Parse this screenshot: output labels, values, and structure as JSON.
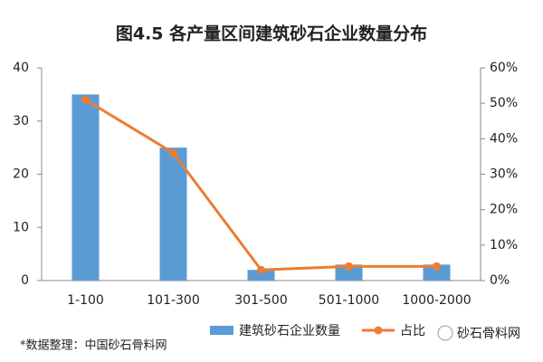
{
  "chart_data": {
    "type": "combo",
    "title": "图4.5 各产量区间建筑砂石企业数量分布",
    "categories": [
      "1-100",
      "101-300",
      "301-500",
      "501-1000",
      "1000-2000"
    ],
    "series": [
      {
        "name": "建筑砂石企业数量",
        "type": "bar",
        "color": "#5b9bd5",
        "values": [
          35,
          25,
          2,
          3,
          3
        ]
      },
      {
        "name": "占比",
        "type": "line",
        "axis": "y2",
        "color": "#ed7d31",
        "values": [
          51,
          36,
          3,
          4,
          4
        ]
      }
    ],
    "ylim": [
      0,
      40
    ],
    "yticks": [
      0,
      10,
      20,
      30,
      40
    ],
    "y2lim": [
      0,
      60
    ],
    "y2ticks": [
      {
        "value": 0,
        "label": "0%"
      },
      {
        "value": 10,
        "label": "10%"
      },
      {
        "value": 20,
        "label": "20%"
      },
      {
        "value": 30,
        "label": "30%"
      },
      {
        "value": 40,
        "label": "40%"
      },
      {
        "value": 50,
        "label": "50%"
      },
      {
        "value": 60,
        "label": "60%"
      }
    ],
    "grid": false,
    "footnote": "*数据整理：中国砂石骨料网",
    "source_logo": "砂石骨料网"
  }
}
